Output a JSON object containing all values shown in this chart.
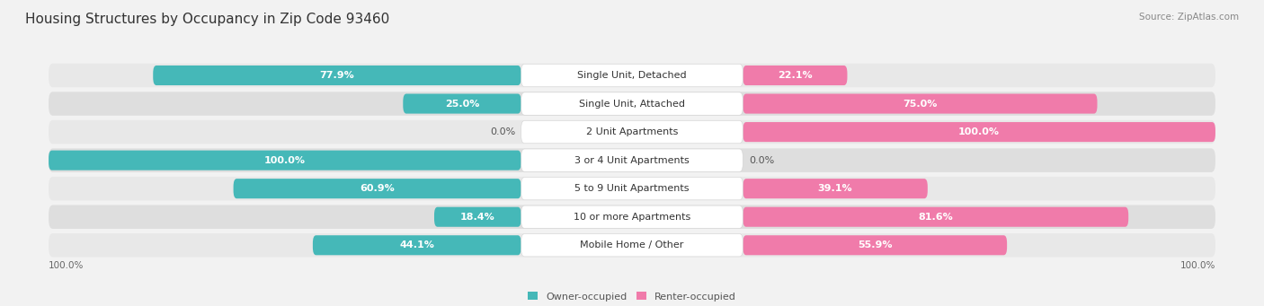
{
  "title": "Housing Structures by Occupancy in Zip Code 93460",
  "source": "Source: ZipAtlas.com",
  "categories": [
    "Single Unit, Detached",
    "Single Unit, Attached",
    "2 Unit Apartments",
    "3 or 4 Unit Apartments",
    "5 to 9 Unit Apartments",
    "10 or more Apartments",
    "Mobile Home / Other"
  ],
  "owner_pct": [
    77.9,
    25.0,
    0.0,
    100.0,
    60.9,
    18.4,
    44.1
  ],
  "renter_pct": [
    22.1,
    75.0,
    100.0,
    0.0,
    39.1,
    81.6,
    55.9
  ],
  "owner_color": "#45b8b8",
  "renter_color": "#f07baa",
  "bg_color": "#f2f2f2",
  "row_bg_light": "#e8e8e8",
  "row_bg_dark": "#dedede",
  "title_fontsize": 11,
  "label_fontsize": 8,
  "pct_fontsize": 8,
  "axis_label_fontsize": 7.5,
  "legend_fontsize": 8,
  "source_fontsize": 7.5
}
